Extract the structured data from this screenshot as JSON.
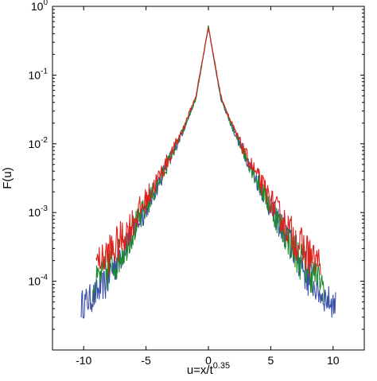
{
  "chart_data": {
    "type": "line",
    "title": "",
    "xlabel": "u=x/t",
    "xlabel_superscript": "0.35",
    "ylabel": "F(u)",
    "xlim": [
      -12.5,
      12.5
    ],
    "ylim": [
      1e-05,
      1
    ],
    "yscale": "log",
    "grid": false,
    "legend": "none",
    "x_ticks": [
      {
        "value": -10,
        "label": "-10"
      },
      {
        "value": -5,
        "label": "-5"
      },
      {
        "value": 0,
        "label": "0"
      },
      {
        "value": 5,
        "label": "5"
      },
      {
        "value": 10,
        "label": "10"
      }
    ],
    "y_ticks": [
      {
        "exp": 0,
        "base": "10",
        "sup": "0"
      },
      {
        "exp": -1,
        "base": "10",
        "sup": "-1"
      },
      {
        "exp": -2,
        "base": "10",
        "sup": "-2"
      },
      {
        "exp": -3,
        "base": "10",
        "sup": "-3"
      },
      {
        "exp": -4,
        "base": "10",
        "sup": "-4"
      }
    ],
    "series": [
      {
        "color": "#3b4fa8",
        "x": [
          -10.2,
          -9.5,
          -9.0,
          -8.5,
          -8.0,
          -7.5,
          -7.0,
          -6.0,
          -5.0,
          -4.0,
          -3.0,
          -2.0,
          -1.0,
          0.0,
          1.0,
          2.0,
          3.0,
          4.0,
          5.0,
          6.0,
          7.0,
          7.5,
          8.0,
          8.5,
          9.0,
          9.5,
          10.2
        ],
        "y": [
          4.5e-05,
          5.5e-05,
          6.5e-05,
          8.5e-05,
          0.00012,
          0.00018,
          0.00026,
          0.00055,
          0.0012,
          0.0027,
          0.0065,
          0.016,
          0.045,
          0.5,
          0.045,
          0.016,
          0.0065,
          0.0027,
          0.0012,
          0.00055,
          0.00026,
          0.00018,
          0.00012,
          8.5e-05,
          6.5e-05,
          5.5e-05,
          4.5e-05
        ]
      },
      {
        "color": "#1b8a2e",
        "x": [
          -9.3,
          -9.0,
          -8.5,
          -8.0,
          -7.5,
          -7.0,
          -6.0,
          -5.0,
          -4.0,
          -3.0,
          -2.0,
          -1.0,
          0.0,
          1.0,
          2.0,
          3.0,
          4.0,
          5.0,
          6.0,
          7.0,
          7.5,
          8.0,
          8.5,
          9.0,
          9.3
        ],
        "y": [
          8e-05,
          0.0001,
          0.00013,
          0.00015,
          0.00019,
          0.00026,
          0.00055,
          0.0012,
          0.0027,
          0.0065,
          0.016,
          0.045,
          0.5,
          0.045,
          0.016,
          0.0065,
          0.0027,
          0.0012,
          0.00055,
          0.00026,
          0.00019,
          0.00015,
          0.00013,
          0.0001,
          8e-05
        ]
      },
      {
        "color": "#e0201b",
        "x": [
          -9.0,
          -8.8,
          -8.5,
          -8.0,
          -7.5,
          -7.0,
          -6.0,
          -5.0,
          -4.0,
          -3.0,
          -2.0,
          -1.0,
          0.0,
          1.0,
          2.0,
          3.0,
          4.0,
          5.0,
          6.0,
          7.0,
          7.5,
          8.0,
          8.5,
          8.8,
          9.0
        ],
        "y": [
          0.0002,
          0.0002,
          0.00021,
          0.00025,
          0.0003,
          0.0004,
          0.00075,
          0.0015,
          0.0032,
          0.007,
          0.017,
          0.05,
          0.5,
          0.05,
          0.017,
          0.007,
          0.0032,
          0.0015,
          0.00075,
          0.0004,
          0.0003,
          0.00025,
          0.00021,
          0.0002,
          0.0002
        ]
      }
    ]
  }
}
